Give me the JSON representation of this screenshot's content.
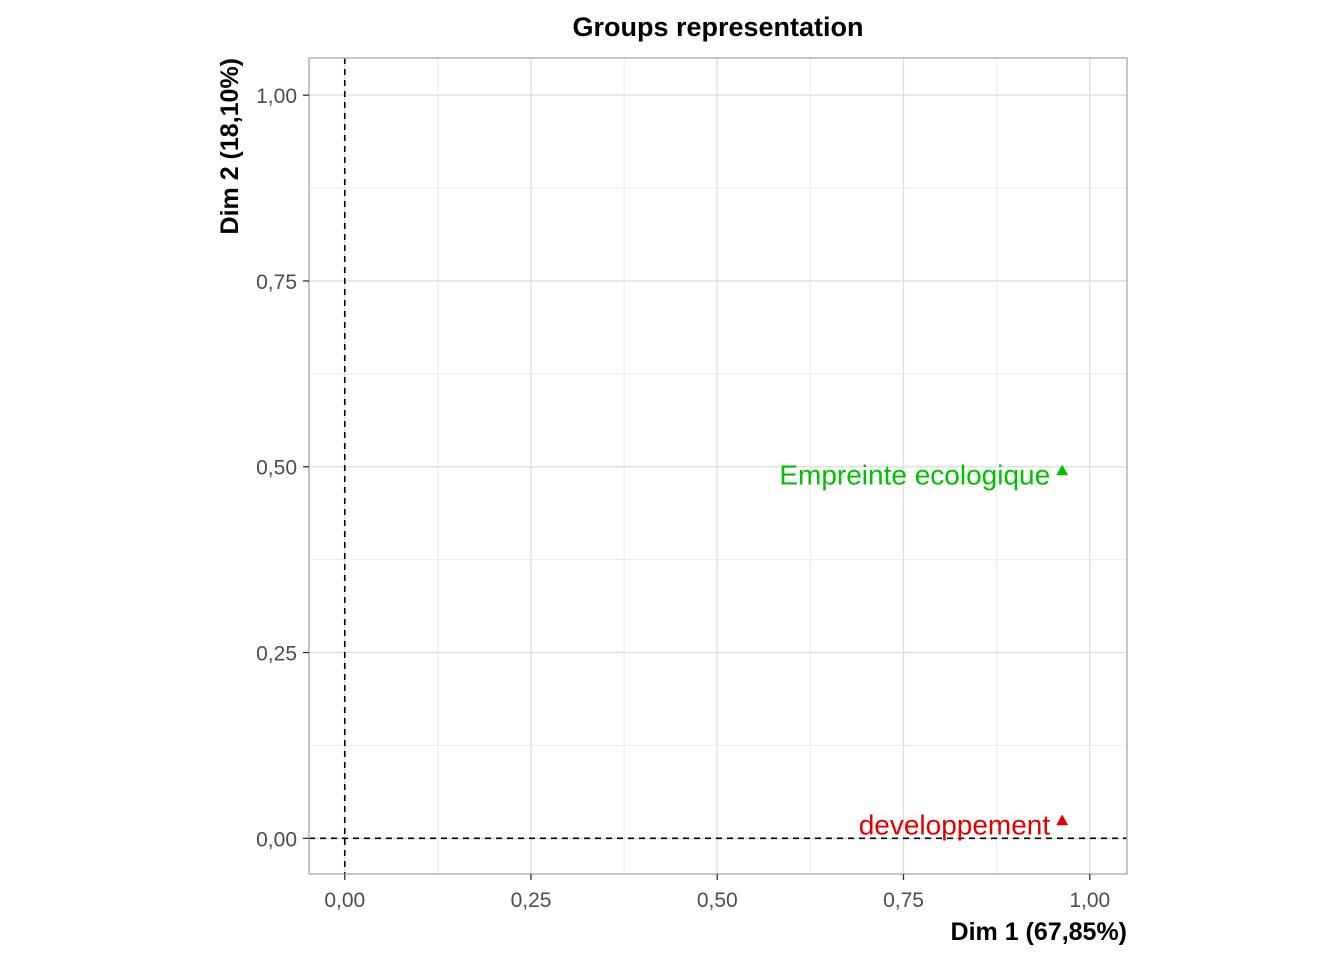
{
  "chart_data": {
    "type": "scatter",
    "title": "Groups representation",
    "xlabel": "Dim 1 (67,85%)",
    "ylabel": "Dim 2 (18,10%)",
    "xlim": [
      -0.048,
      1.05
    ],
    "ylim": [
      -0.048,
      1.05
    ],
    "x_ticks": [
      0,
      0.25,
      0.5,
      0.75,
      1.0
    ],
    "x_tick_labels": [
      "0,00",
      "0,25",
      "0,50",
      "0,75",
      "1,00"
    ],
    "y_ticks": [
      0,
      0.25,
      0.5,
      0.75,
      1.0
    ],
    "y_tick_labels": [
      "0,00",
      "0,25",
      "0,50",
      "0,75",
      "1,00"
    ],
    "grid": true,
    "reference_lines": {
      "x": 0,
      "y": 0,
      "style": "dashed"
    },
    "points": [
      {
        "label": "Empreinte ecologique",
        "x": 0.963,
        "y": 0.495,
        "color": "#00C000",
        "marker": "triangle"
      },
      {
        "label": "developpement",
        "x": 0.963,
        "y": 0.024,
        "color": "#E00000",
        "marker": "triangle"
      }
    ]
  }
}
